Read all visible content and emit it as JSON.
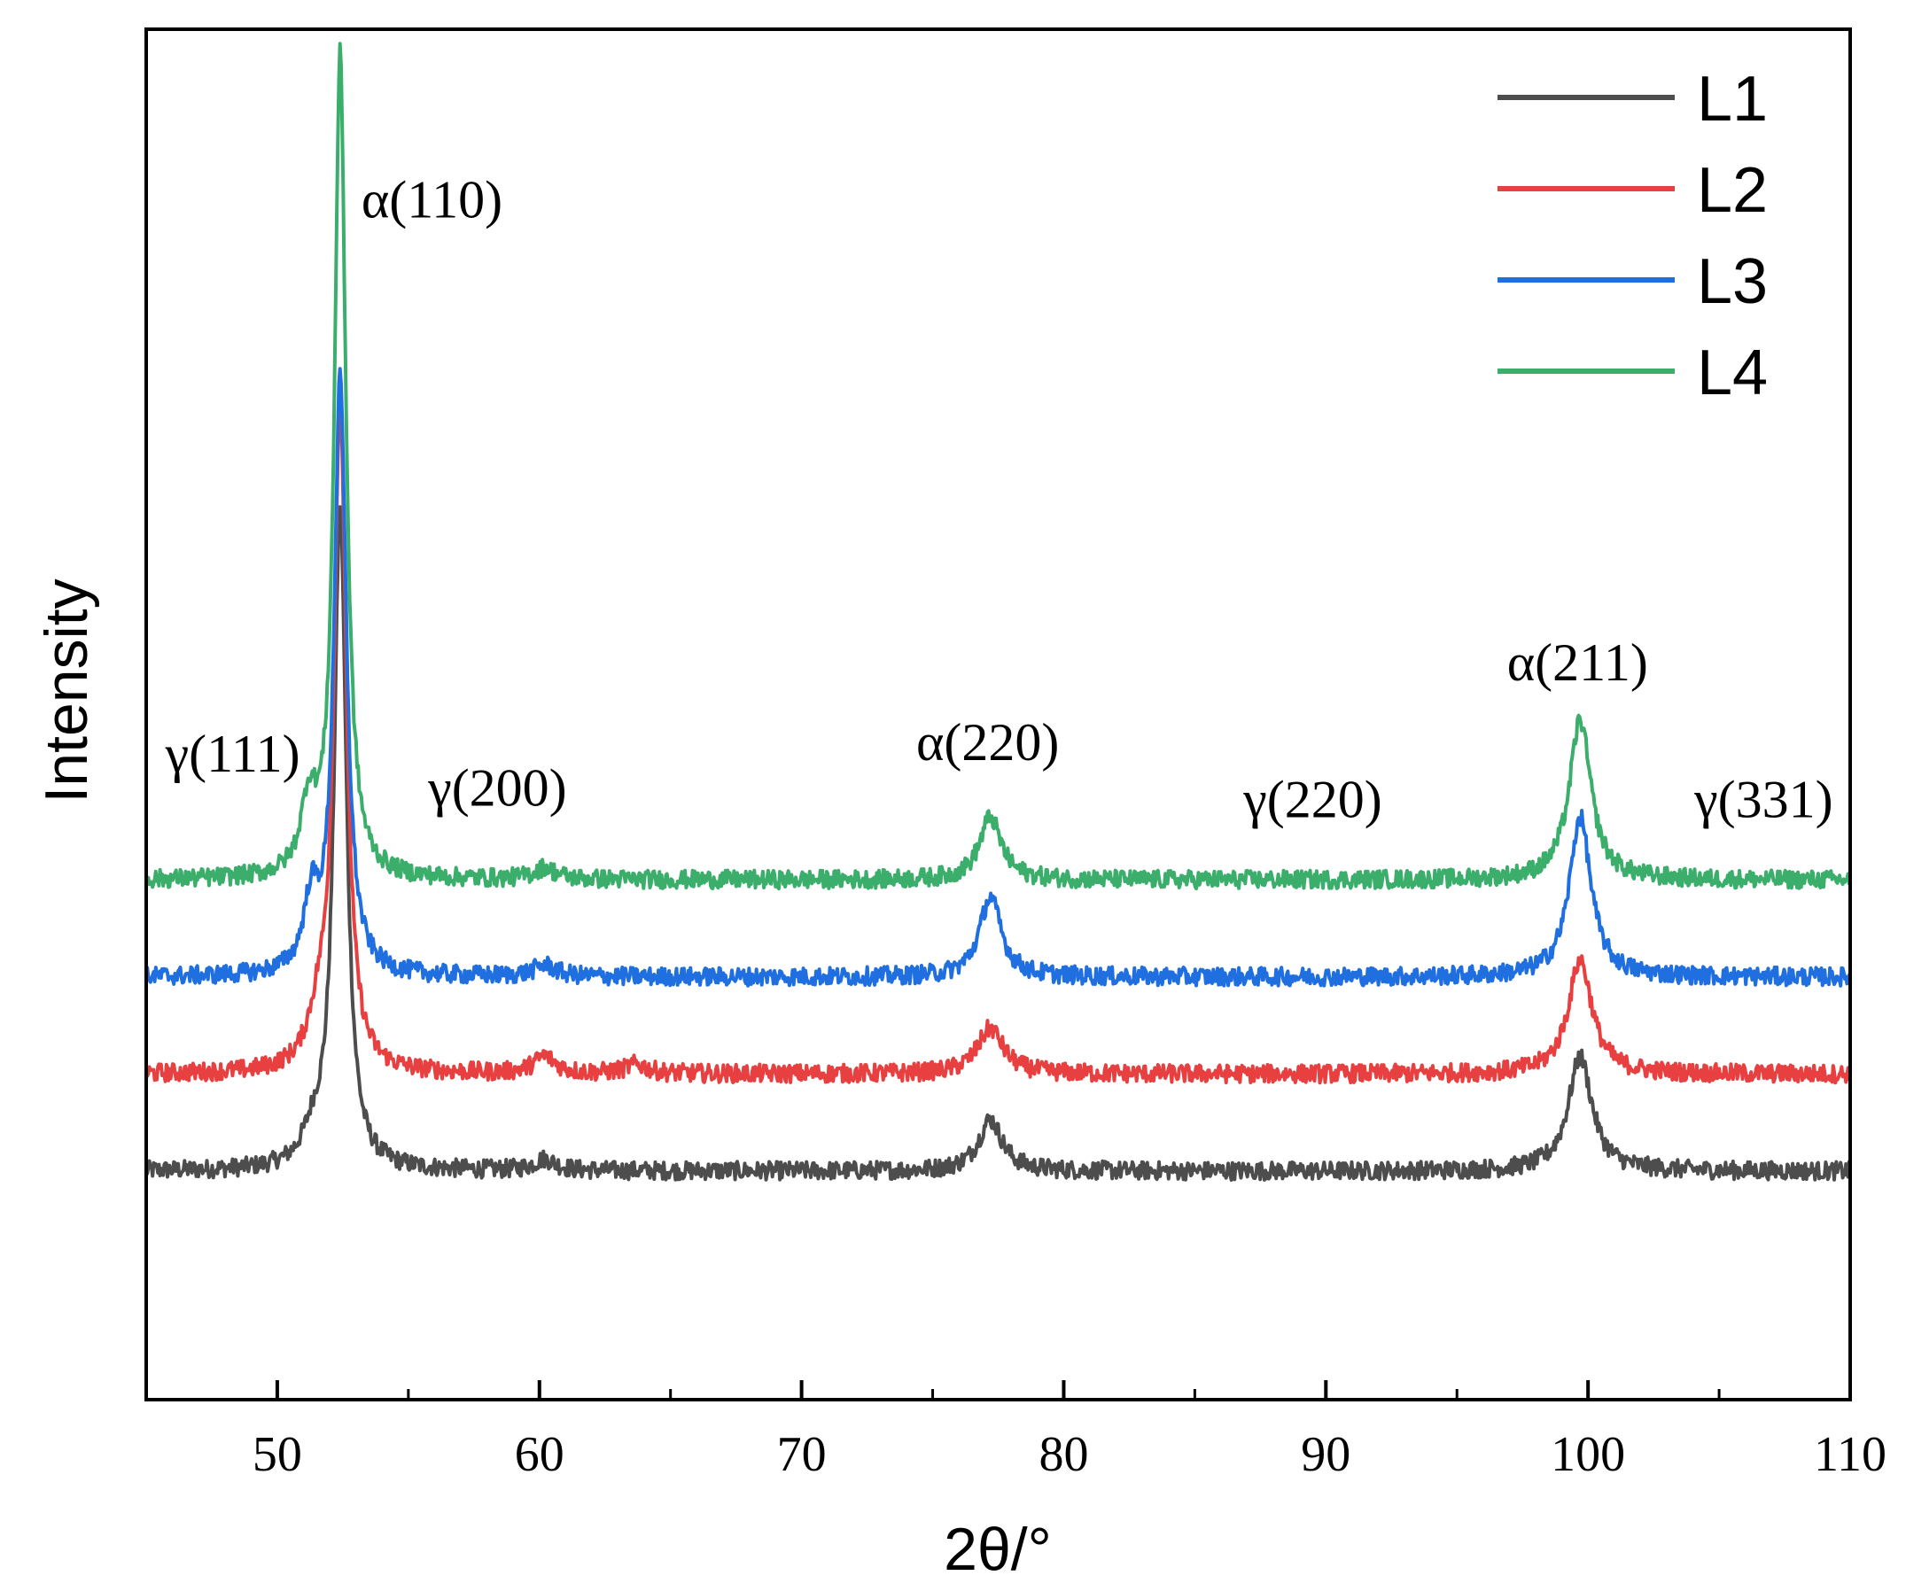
{
  "chart_data": {
    "type": "line",
    "title": "",
    "xlabel": "2θ/°",
    "ylabel": "Intensity",
    "xlim": [
      45,
      110
    ],
    "ylim": [
      -0.2,
      1.0
    ],
    "x_ticks": [
      50,
      60,
      70,
      80,
      90,
      100,
      110
    ],
    "y_ticks_shown": false,
    "legend_position": "top-right",
    "series": [
      {
        "name": "L1",
        "color": "#4d4d4d",
        "offset": 0.0,
        "baseline": 0.0,
        "noise": 0.008,
        "peaks": [
          {
            "x": 51.4,
            "h": 0.025,
            "w": 0.5
          },
          {
            "x": 52.4,
            "h": 0.58,
            "w": 0.28
          },
          {
            "x": 60.2,
            "h": 0.01,
            "w": 0.5
          },
          {
            "x": 77.2,
            "h": 0.045,
            "w": 0.55
          },
          {
            "x": 99.7,
            "h": 0.1,
            "w": 0.55
          }
        ]
      },
      {
        "name": "L2",
        "color": "#e84040",
        "offset": 0.085,
        "baseline": 0.0,
        "noise": 0.008,
        "peaks": [
          {
            "x": 51.6,
            "h": 0.04,
            "w": 0.5
          },
          {
            "x": 52.4,
            "h": 0.58,
            "w": 0.28
          },
          {
            "x": 60.2,
            "h": 0.015,
            "w": 0.5
          },
          {
            "x": 63.7,
            "h": 0.008,
            "w": 0.5
          },
          {
            "x": 77.2,
            "h": 0.04,
            "w": 0.6
          },
          {
            "x": 99.7,
            "h": 0.1,
            "w": 0.55
          }
        ]
      },
      {
        "name": "L3",
        "color": "#1f6fe0",
        "offset": 0.17,
        "baseline": 0.0,
        "noise": 0.008,
        "peaks": [
          {
            "x": 51.3,
            "h": 0.06,
            "w": 0.35
          },
          {
            "x": 52.4,
            "h": 0.52,
            "w": 0.28
          },
          {
            "x": 60.2,
            "h": 0.01,
            "w": 0.5
          },
          {
            "x": 77.2,
            "h": 0.07,
            "w": 0.5
          },
          {
            "x": 99.7,
            "h": 0.14,
            "w": 0.5
          }
        ]
      },
      {
        "name": "L4",
        "color": "#3aae6a",
        "offset": 0.255,
        "baseline": 0.0,
        "noise": 0.008,
        "peaks": [
          {
            "x": 51.2,
            "h": 0.06,
            "w": 0.35
          },
          {
            "x": 52.4,
            "h": 0.72,
            "w": 0.26
          },
          {
            "x": 60.2,
            "h": 0.01,
            "w": 0.5
          },
          {
            "x": 77.2,
            "h": 0.055,
            "w": 0.5
          },
          {
            "x": 99.7,
            "h": 0.14,
            "w": 0.5
          }
        ]
      }
    ],
    "annotations": [
      {
        "text": "α(110)",
        "x": 55.9,
        "y": 0.835
      },
      {
        "text": "γ(111)",
        "x": 48.3,
        "y": 0.35
      },
      {
        "text": "γ(200)",
        "x": 58.4,
        "y": 0.32
      },
      {
        "text": "α(220)",
        "x": 77.1,
        "y": 0.36
      },
      {
        "text": "γ(220)",
        "x": 89.5,
        "y": 0.31
      },
      {
        "text": "α(211)",
        "x": 99.6,
        "y": 0.43
      },
      {
        "text": "γ(331)",
        "x": 106.7,
        "y": 0.31
      }
    ]
  }
}
